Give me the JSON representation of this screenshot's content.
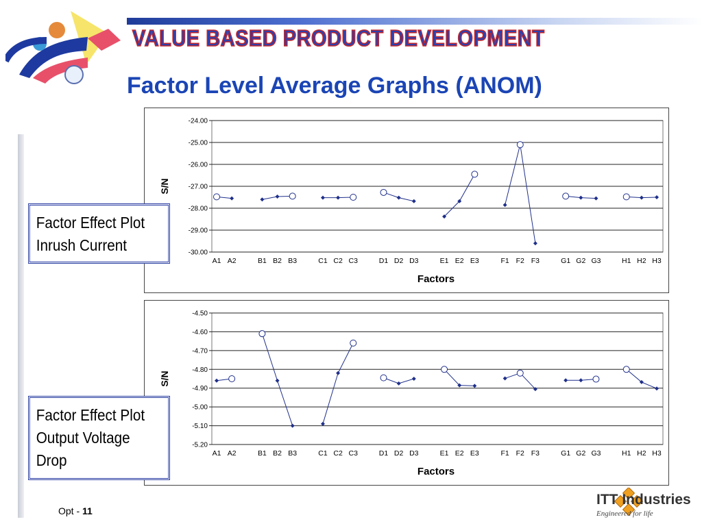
{
  "header": {
    "banner": "VALUE BASED PRODUCT DEVELOPMENT",
    "title": "Factor Level Average Graphs (ANOM)"
  },
  "callouts": [
    {
      "line1": "Factor Effect Plot",
      "line2": "Inrush Current",
      "line3": ""
    },
    {
      "line1": "Factor Effect Plot",
      "line2": "Output Voltage",
      "line3": "Drop"
    }
  ],
  "footer": {
    "prefix": "Opt - ",
    "page": "11"
  },
  "brand": {
    "name": "ITT Industries",
    "tagline": "Engineered for life"
  },
  "colors": {
    "series": "#1f2f8a",
    "title": "#1b45b5",
    "logo_orange": "#f0a020"
  },
  "chart_data": [
    {
      "type": "line",
      "ylabel": "S/N",
      "xlabel": "Factors",
      "ylim": [
        -30.0,
        -24.0
      ],
      "yticks": [
        -24.0,
        -25.0,
        -26.0,
        -27.0,
        -28.0,
        -29.0,
        -30.0
      ],
      "grid": true,
      "marker_note": "open circle marks the highest level of each factor",
      "groups": [
        {
          "factor": "A",
          "levels": [
            "A1",
            "A2"
          ],
          "values": [
            -27.48,
            -27.55
          ]
        },
        {
          "factor": "B",
          "levels": [
            "B1",
            "B2",
            "B3"
          ],
          "values": [
            -27.6,
            -27.47,
            -27.45
          ]
        },
        {
          "factor": "C",
          "levels": [
            "C1",
            "C2",
            "C3"
          ],
          "values": [
            -27.52,
            -27.52,
            -27.5
          ]
        },
        {
          "factor": "D",
          "levels": [
            "D1",
            "D2",
            "D3"
          ],
          "values": [
            -27.28,
            -27.52,
            -27.68
          ]
        },
        {
          "factor": "E",
          "levels": [
            "E1",
            "E2",
            "E3"
          ],
          "values": [
            -28.38,
            -27.68,
            -26.45
          ]
        },
        {
          "factor": "F",
          "levels": [
            "F1",
            "F2",
            "F3"
          ],
          "values": [
            -27.85,
            -25.1,
            -29.6
          ]
        },
        {
          "factor": "G",
          "levels": [
            "G1",
            "G2",
            "G3"
          ],
          "values": [
            -27.45,
            -27.52,
            -27.55
          ]
        },
        {
          "factor": "H",
          "levels": [
            "H1",
            "H2",
            "H3"
          ],
          "values": [
            -27.48,
            -27.52,
            -27.5
          ]
        }
      ]
    },
    {
      "type": "line",
      "ylabel": "S/N",
      "xlabel": "Factors",
      "ylim": [
        -5.2,
        -4.5
      ],
      "yticks": [
        -4.5,
        -4.6,
        -4.7,
        -4.8,
        -4.9,
        -5.0,
        -5.1,
        -5.2
      ],
      "grid": true,
      "marker_note": "open circle marks the highest level of each factor",
      "groups": [
        {
          "factor": "A",
          "levels": [
            "A1",
            "A2"
          ],
          "values": [
            -4.86,
            -4.85
          ]
        },
        {
          "factor": "B",
          "levels": [
            "B1",
            "B2",
            "B3"
          ],
          "values": [
            -4.61,
            -4.86,
            -5.1
          ]
        },
        {
          "factor": "C",
          "levels": [
            "C1",
            "C2",
            "C3"
          ],
          "values": [
            -5.09,
            -4.82,
            -4.66
          ]
        },
        {
          "factor": "D",
          "levels": [
            "D1",
            "D2",
            "D3"
          ],
          "values": [
            -4.845,
            -4.875,
            -4.85
          ]
        },
        {
          "factor": "E",
          "levels": [
            "E1",
            "E2",
            "E3"
          ],
          "values": [
            -4.8,
            -4.885,
            -4.888
          ]
        },
        {
          "factor": "F",
          "levels": [
            "F1",
            "F2",
            "F3"
          ],
          "values": [
            -4.848,
            -4.82,
            -4.905
          ]
        },
        {
          "factor": "G",
          "levels": [
            "G1",
            "G2",
            "G3"
          ],
          "values": [
            -4.858,
            -4.858,
            -4.852
          ]
        },
        {
          "factor": "H",
          "levels": [
            "H1",
            "H2",
            "H3"
          ],
          "values": [
            -4.8,
            -4.868,
            -4.902
          ]
        }
      ]
    }
  ]
}
